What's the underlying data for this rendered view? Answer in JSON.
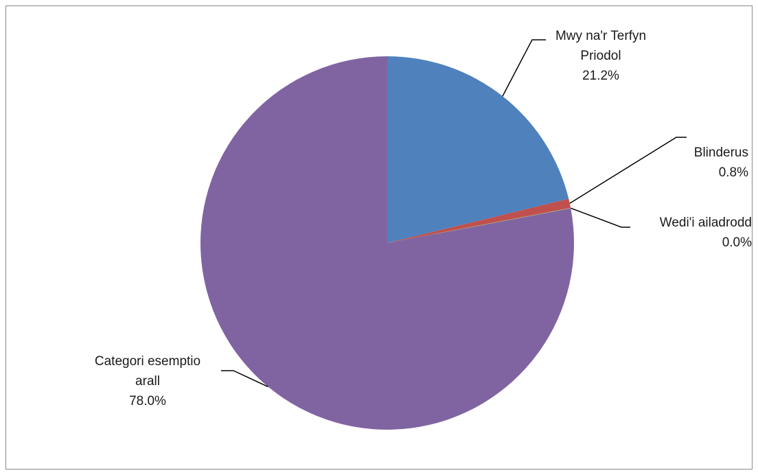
{
  "chart_data": {
    "type": "pie",
    "slices": [
      {
        "label_lines": [
          "Mwy na'r Terfyn",
          "Priodol"
        ],
        "value": 21.2,
        "percent_label": "21.2%",
        "color": "#4f81bd"
      },
      {
        "label_lines": [
          "Blinderus"
        ],
        "value": 0.8,
        "percent_label": "0.8%",
        "color": "#c0504d"
      },
      {
        "label_lines": [
          "Wedi'i ailadrodd"
        ],
        "value": 0.04,
        "percent_label": "0.0%",
        "color": "#9bbb59"
      },
      {
        "label_lines": [
          "Categori esemptio",
          "arall"
        ],
        "value": 78.0,
        "percent_label": "78.0%",
        "color": "#8064a2"
      }
    ],
    "start_angle": "12 o'clock",
    "direction": "clockwise",
    "legend": "none",
    "data_labels": "outside with leader lines"
  }
}
